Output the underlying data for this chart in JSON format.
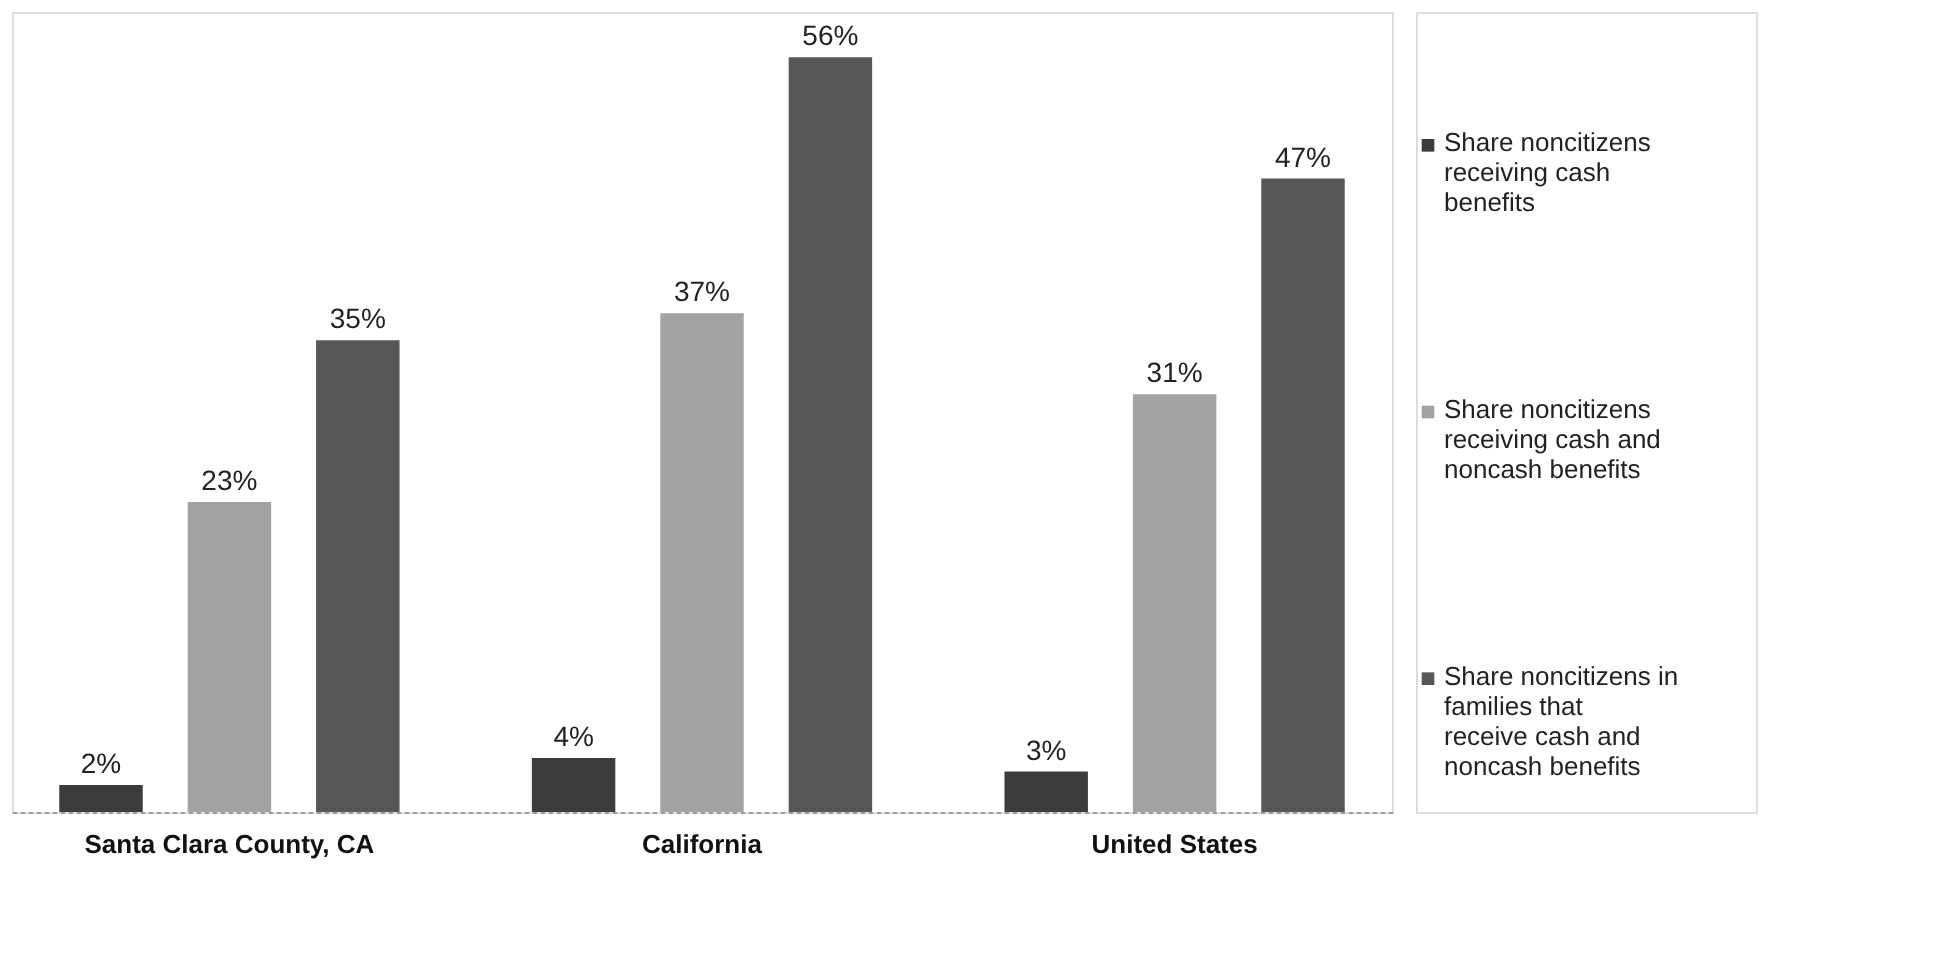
{
  "chart_data": {
    "type": "bar",
    "categories": [
      "Santa Clara County, CA",
      "California",
      "United States"
    ],
    "series": [
      {
        "name": "Share noncitizens receiving cash benefits",
        "color": "#3c3c3c",
        "values": [
          2,
          4,
          3
        ],
        "value_labels": [
          "2%",
          "4%",
          "3%"
        ]
      },
      {
        "name": "Share noncitizens receiving cash and noncash benefits",
        "color": "#a3a3a3",
        "values": [
          23,
          37,
          31
        ],
        "value_labels": [
          "23%",
          "37%",
          "31%"
        ]
      },
      {
        "name": "Share noncitizens in families that receive cash and noncash benefits",
        "color": "#575757",
        "values": [
          35,
          56,
          47
        ],
        "value_labels": [
          "35%",
          "56%",
          "47%"
        ]
      }
    ],
    "legend": "right",
    "grid": false
  }
}
